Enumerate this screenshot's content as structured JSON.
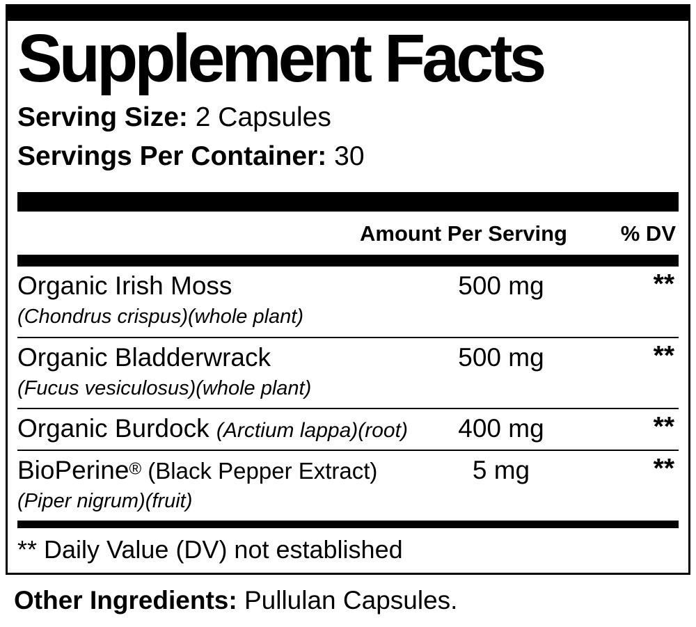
{
  "title": "Supplement Facts",
  "serving": {
    "size_label": "Serving Size:",
    "size_value": " 2 Capsules",
    "container_label": "Servings Per Container:",
    "container_value": " 30"
  },
  "table": {
    "amount_header": "Amount Per Serving",
    "dv_header": "% DV",
    "rows": [
      {
        "name": "Organic Irish Moss",
        "latin": "(Chondrus crispus)(whole plant)",
        "amount": "500 mg",
        "dv": "**"
      },
      {
        "name": "Organic Bladderwrack",
        "latin": "(Fucus vesiculosus)(whole plant)",
        "amount": "500 mg",
        "dv": "**"
      },
      {
        "name": "Organic Burdock ",
        "latin_inline": "(Arctium lappa)(root)",
        "amount": "400 mg",
        "dv": "**"
      },
      {
        "name": "BioPerine",
        "reg": "®",
        "paren": " (Black Pepper Extract)",
        "latin": "(Piper nigrum)(fruit)",
        "amount": "5 mg",
        "dv": "**"
      }
    ],
    "footnote": "** Daily Value (DV) not established"
  },
  "other_ingredients": {
    "label": "Other Ingredients:",
    "value": " Pullulan Capsules."
  }
}
